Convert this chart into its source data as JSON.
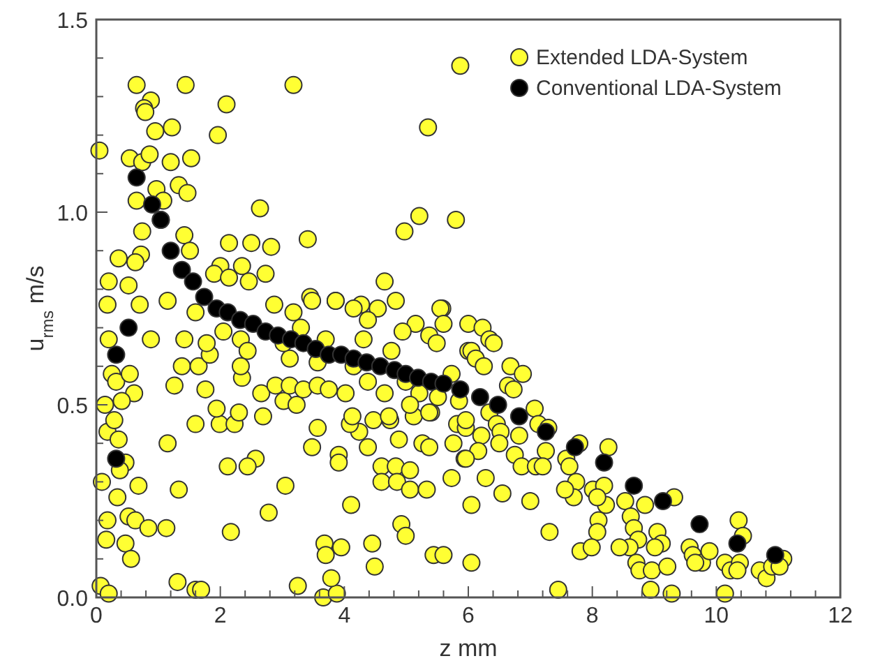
{
  "chart_data": {
    "type": "scatter",
    "xlabel": "z  mm",
    "ylabel": "u$_{rms}$  m/s",
    "xlim": [
      0,
      12
    ],
    "ylim": [
      0,
      1.5
    ],
    "xticks": [
      0,
      {
        "value": 0.4,
        "label": null
      },
      {
        "value": 0.8,
        "label": null
      },
      {
        "value": 1.2,
        "label": null
      },
      {
        "value": 1.6,
        "label": null
      },
      2,
      {
        "value": 2.4,
        "label": null
      },
      {
        "value": 2.8,
        "label": null
      },
      {
        "value": 3.2,
        "label": null
      },
      {
        "value": 3.6,
        "label": null
      },
      4,
      {
        "value": 4.4,
        "label": null
      },
      {
        "value": 4.8,
        "label": null
      },
      {
        "value": 5.2,
        "label": null
      },
      {
        "value": 5.6,
        "label": null
      },
      6,
      {
        "value": 6.4,
        "label": null
      },
      {
        "value": 6.8,
        "label": null
      },
      {
        "value": 7.2,
        "label": null
      },
      {
        "value": 7.6,
        "label": null
      },
      8,
      {
        "value": 8.4,
        "label": null
      },
      {
        "value": 8.8,
        "label": null
      },
      {
        "value": 9.2,
        "label": null
      },
      {
        "value": 9.6,
        "label": null
      },
      10,
      {
        "value": 10.4,
        "label": null
      },
      {
        "value": 10.8,
        "label": null
      },
      {
        "value": 11.2,
        "label": null
      },
      {
        "value": 11.6,
        "label": null
      },
      12
    ],
    "yticks": [
      {
        "value": 0,
        "label": "0.0"
      },
      {
        "value": 0.1,
        "label": null
      },
      {
        "value": 0.2,
        "label": null
      },
      {
        "value": 0.3,
        "label": null
      },
      {
        "value": 0.4,
        "label": null
      },
      {
        "value": 0.5,
        "label": "0.5"
      },
      {
        "value": 0.6,
        "label": null
      },
      {
        "value": 0.7,
        "label": null
      },
      {
        "value": 0.8,
        "label": null
      },
      {
        "value": 0.9,
        "label": null
      },
      {
        "value": 1.0,
        "label": "1.0"
      },
      {
        "value": 1.1,
        "label": null
      },
      {
        "value": 1.2,
        "label": null
      },
      {
        "value": 1.3,
        "label": null
      },
      {
        "value": 1.4,
        "label": null
      },
      {
        "value": 1.5,
        "label": "1.5"
      }
    ],
    "legend": "top right",
    "marker": "circle",
    "grid": false,
    "series": [
      {
        "name": "Extended LDA-System",
        "color": "#ffff33",
        "x": [
          0.05,
          0.65,
          0.88,
          0.77,
          0.79,
          1.44,
          0.95,
          1.22,
          2.1,
          1.96,
          3.18,
          5.87,
          5.35,
          0.54,
          0.74,
          0.86,
          1.2,
          1.53,
          1.33,
          1.47,
          0.97,
          1.08,
          0.65,
          1.04,
          2.64,
          5.21,
          5.8,
          4.97,
          3.41,
          0.74,
          1.42,
          2.14,
          2.5,
          2.82,
          1.51,
          0.72,
          0.36,
          0.63,
          2.0,
          2.35,
          2.73,
          0.2,
          0.52,
          4.65,
          1.9,
          2.14,
          2.46,
          4.83,
          5.58,
          3.86,
          3.45,
          4.27,
          2.87,
          0.09,
          0.14,
          0.18,
          0.36,
          0.47,
          0.38,
          0.68,
          0.34,
          0.18,
          0.16,
          0.47,
          0.52,
          0.63,
          0.84,
          0.56,
          1.13,
          1.33,
          1.15,
          1.26,
          1.6,
          1.99,
          2.23,
          1.94,
          2.3,
          2.12,
          2.57,
          2.44,
          3.05,
          2.78,
          2.17,
          1.31,
          1.6,
          1.69,
          0.07,
          0.2,
          3.25,
          3.66,
          3.88,
          3.79,
          3.68,
          3.7,
          3.95,
          4.11,
          4.45,
          4.49,
          4.92,
          4.99,
          5.44,
          5.6,
          6.05,
          6.05,
          3.48,
          3.57,
          3.91,
          3.91,
          4.6,
          4.6,
          4.83,
          5.06,
          4.85,
          5.06,
          5.33,
          5.73,
          5.26,
          5.37,
          5.76,
          5.94,
          4.88,
          4.38,
          4.24,
          4.09,
          4.47,
          4.74,
          5.12,
          5.4,
          5.82,
          5.96,
          0.25,
          0.32,
          0.54,
          0.61,
          0.41,
          0.29,
          0.2,
          0.18,
          0.7,
          0.88,
          1.15,
          1.38,
          1.65,
          1.76,
          1.83,
          1.78,
          1.42,
          1.6,
          2.05,
          2.33,
          2.44,
          2.35,
          2.33,
          2.66,
          2.69,
          3.02,
          3.23,
          2.89,
          3.12,
          3.34,
          3.57,
          3.75,
          3.12,
          3.02,
          3.3,
          3.18,
          3.48,
          3.86,
          3.7,
          3.57,
          4.15,
          4.31,
          4.54,
          4.38,
          4.15,
          4.02,
          4.13,
          4.38,
          4.65,
          4.72,
          4.99,
          5.21,
          4.76,
          5.15,
          4.94,
          5.37,
          5.55,
          5.6,
          5.49,
          5.73,
          5.51,
          5.85,
          5.37,
          5.06,
          6.0,
          6.0,
          6.23,
          6.34,
          6.41,
          6.05,
          6.12,
          6.25,
          6.68,
          6.88,
          6.64,
          6.73,
          7.07,
          7.13,
          7.29,
          6.34,
          6.46,
          6.52,
          6.5,
          6.21,
          6.16,
          5.96,
          5.96,
          6.82,
          6.75,
          6.86,
          7.09,
          7.25,
          7.2,
          6.28,
          6.55,
          7.0,
          7.31,
          7.58,
          7.63,
          7.74,
          7.7,
          7.56,
          7.79,
          8.26,
          8.01,
          8.19,
          8.22,
          8.08,
          8.1,
          8.08,
          7.81,
          7.99,
          7.45,
          8.53,
          8.62,
          8.67,
          8.74,
          8.6,
          8.44,
          8.71,
          8.76,
          8.96,
          9.21,
          8.85,
          9.32,
          9.05,
          9.12,
          9.01,
          8.94,
          9.28,
          9.57,
          9.62,
          9.77,
          9.89,
          9.66,
          10.36,
          10.43,
          10.14,
          10.23,
          10.38,
          10.34,
          10.14,
          10.7,
          10.81,
          10.9,
          11.08,
          11.02
        ],
        "values": [
          1.16,
          1.33,
          1.29,
          1.27,
          1.26,
          1.33,
          1.21,
          1.22,
          1.28,
          1.2,
          1.33,
          1.38,
          1.22,
          1.14,
          1.13,
          1.15,
          1.13,
          1.14,
          1.07,
          1.05,
          1.06,
          1.03,
          1.03,
          0.98,
          1.01,
          0.99,
          0.98,
          0.95,
          0.93,
          0.95,
          0.94,
          0.92,
          0.92,
          0.91,
          0.9,
          0.89,
          0.88,
          0.87,
          0.86,
          0.86,
          0.84,
          0.82,
          0.81,
          0.82,
          0.84,
          0.83,
          0.82,
          0.77,
          0.75,
          0.77,
          0.78,
          0.76,
          0.76,
          0.3,
          0.5,
          0.43,
          0.41,
          0.35,
          0.33,
          0.29,
          0.26,
          0.2,
          0.15,
          0.14,
          0.21,
          0.2,
          0.18,
          0.1,
          0.18,
          0.28,
          0.4,
          0.55,
          0.45,
          0.45,
          0.45,
          0.49,
          0.48,
          0.34,
          0.36,
          0.34,
          0.29,
          0.22,
          0.17,
          0.04,
          0.02,
          0.02,
          0.03,
          0.01,
          0.03,
          0.0,
          0.01,
          0.05,
          0.14,
          0.11,
          0.13,
          0.24,
          0.14,
          0.08,
          0.19,
          0.16,
          0.11,
          0.11,
          0.09,
          0.24,
          0.39,
          0.44,
          0.37,
          0.35,
          0.34,
          0.3,
          0.34,
          0.33,
          0.3,
          0.28,
          0.28,
          0.31,
          0.4,
          0.39,
          0.4,
          0.36,
          0.41,
          0.39,
          0.43,
          0.45,
          0.46,
          0.46,
          0.47,
          0.48,
          0.45,
          0.44,
          0.58,
          0.56,
          0.58,
          0.53,
          0.51,
          0.46,
          0.67,
          0.76,
          0.76,
          0.67,
          0.77,
          0.6,
          0.6,
          0.54,
          0.63,
          0.66,
          0.67,
          0.74,
          0.69,
          0.67,
          0.64,
          0.57,
          0.6,
          0.53,
          0.47,
          0.51,
          0.5,
          0.55,
          0.55,
          0.54,
          0.55,
          0.54,
          0.62,
          0.66,
          0.7,
          0.74,
          0.77,
          0.77,
          0.67,
          0.61,
          0.75,
          0.67,
          0.75,
          0.72,
          0.6,
          0.53,
          0.47,
          0.56,
          0.53,
          0.47,
          0.56,
          0.53,
          0.64,
          0.71,
          0.69,
          0.68,
          0.75,
          0.71,
          0.66,
          0.58,
          0.52,
          0.51,
          0.48,
          0.5,
          0.71,
          0.64,
          0.7,
          0.67,
          0.66,
          0.64,
          0.62,
          0.6,
          0.6,
          0.58,
          0.55,
          0.54,
          0.49,
          0.45,
          0.44,
          0.48,
          0.45,
          0.43,
          0.4,
          0.42,
          0.38,
          0.46,
          0.36,
          0.42,
          0.37,
          0.34,
          0.34,
          0.38,
          0.34,
          0.31,
          0.27,
          0.25,
          0.17,
          0.36,
          0.34,
          0.3,
          0.26,
          0.28,
          0.4,
          0.39,
          0.28,
          0.29,
          0.24,
          0.26,
          0.2,
          0.17,
          0.12,
          0.13,
          0.02,
          0.25,
          0.21,
          0.18,
          0.15,
          0.13,
          0.13,
          0.09,
          0.07,
          0.07,
          0.08,
          0.24,
          0.26,
          0.17,
          0.14,
          0.13,
          0.02,
          0.01,
          0.13,
          0.11,
          0.09,
          0.12,
          0.09,
          0.2,
          0.16,
          0.09,
          0.07,
          0.09,
          0.07,
          0.01,
          0.07,
          0.05,
          0.08,
          0.1,
          0.08
        ]
      },
      {
        "name": "Conventional LDA-System",
        "color": "#000000",
        "x": [
          0.32,
          0.32,
          0.52,
          0.65,
          0.9,
          1.04,
          1.2,
          1.38,
          1.56,
          1.74,
          1.94,
          2.12,
          2.32,
          2.53,
          2.73,
          2.93,
          3.14,
          3.34,
          3.54,
          3.75,
          3.95,
          4.15,
          4.36,
          4.58,
          4.81,
          4.99,
          5.19,
          5.4,
          5.6,
          5.87,
          6.19,
          6.48,
          6.82,
          7.25,
          7.72,
          8.19,
          8.67,
          9.14,
          9.73,
          10.34,
          10.95
        ],
        "values": [
          0.36,
          0.63,
          0.7,
          1.09,
          1.02,
          0.98,
          0.9,
          0.85,
          0.82,
          0.78,
          0.75,
          0.74,
          0.72,
          0.71,
          0.69,
          0.68,
          0.67,
          0.66,
          0.645,
          0.63,
          0.63,
          0.62,
          0.61,
          0.6,
          0.59,
          0.58,
          0.57,
          0.56,
          0.555,
          0.54,
          0.52,
          0.5,
          0.47,
          0.43,
          0.39,
          0.35,
          0.29,
          0.25,
          0.19,
          0.14,
          0.11
        ]
      }
    ]
  }
}
